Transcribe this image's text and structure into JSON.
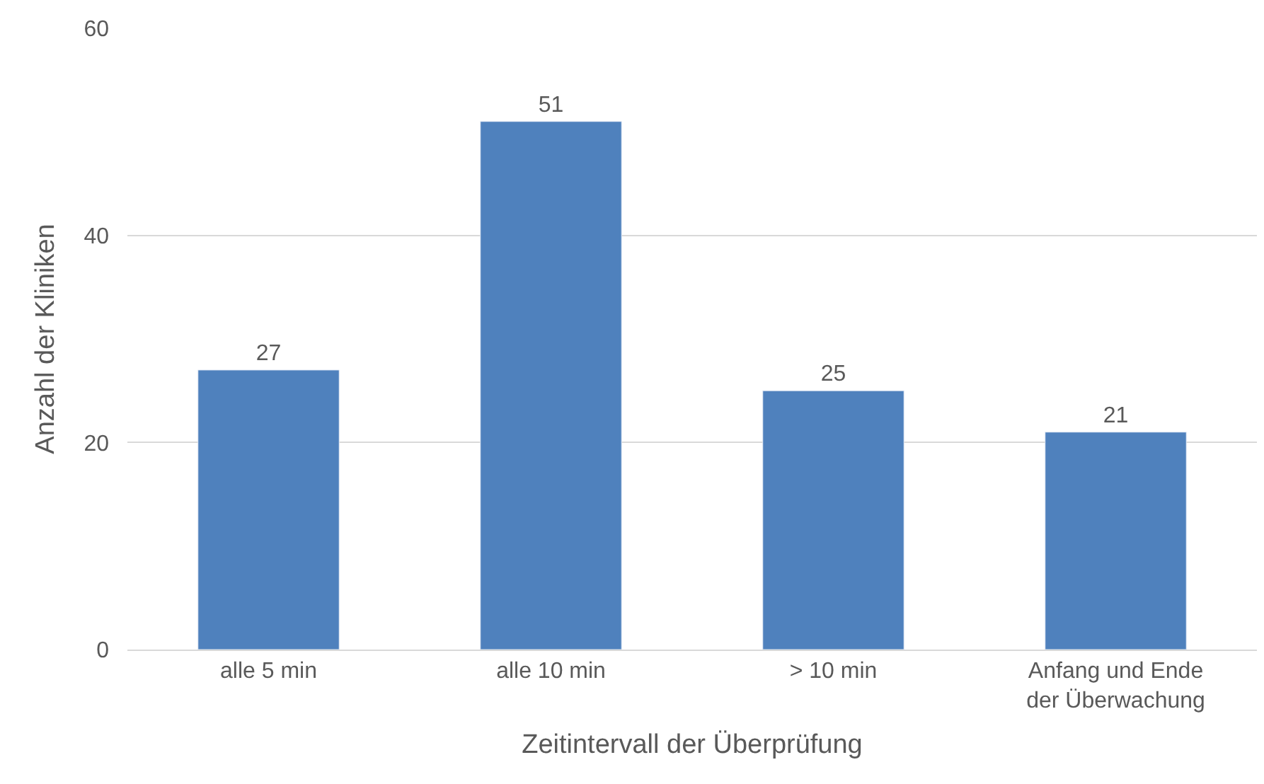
{
  "chart_data": {
    "type": "bar",
    "xlabel": "Zeitintervall der Überprüfung",
    "ylabel": "Anzahl der Kliniken",
    "categories": [
      "alle 5 min",
      "alle 10 min",
      "> 10 min",
      "Anfang und Ende der Überwachung"
    ],
    "values": [
      27,
      51,
      25,
      21
    ],
    "color": "#4f81bd",
    "ylim": [
      0,
      60
    ],
    "yticks": [
      0,
      20,
      40,
      60
    ],
    "grid": "y",
    "data_labels": true
  }
}
